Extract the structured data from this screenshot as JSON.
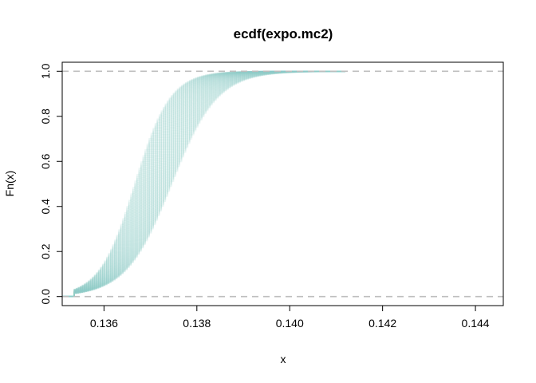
{
  "chart_data": {
    "type": "line",
    "title": "ecdf(expo.mc2)",
    "xlabel": "x",
    "ylabel": "Fn(x)",
    "xlim": [
      0.1351,
      0.1446
    ],
    "ylim": [
      -0.04,
      1.04
    ],
    "x_ticks": [
      0.136,
      0.138,
      0.14,
      0.142,
      0.144
    ],
    "x_tick_labels": [
      "0.136",
      "0.138",
      "0.140",
      "0.142",
      "0.144"
    ],
    "y_ticks": [
      0.0,
      0.2,
      0.4,
      0.6,
      0.8,
      1.0
    ],
    "y_tick_labels": [
      "0.0",
      "0.2",
      "0.4",
      "0.6",
      "0.8",
      "1.0"
    ],
    "reference_lines": [
      {
        "y": 0.0,
        "style": "dashed",
        "color": "#bebebe"
      },
      {
        "y": 1.0,
        "style": "dashed",
        "color": "#bebebe"
      }
    ],
    "series_color": "#8ecfca",
    "series_opacity": 0.18,
    "series_count": 60,
    "series": [
      {
        "x": [
          0.1353,
          0.1357,
          0.1361,
          0.1364,
          0.1367,
          0.137,
          0.1373,
          0.1377,
          0.1381,
          0.1386,
          0.1391,
          0.1397,
          0.1404,
          0.141
        ],
        "y": [
          0.0,
          0.02,
          0.1,
          0.24,
          0.42,
          0.58,
          0.7,
          0.8,
          0.88,
          0.94,
          0.97,
          0.99,
          0.997,
          1.0
        ]
      },
      {
        "x": [
          0.1355,
          0.136,
          0.1364,
          0.1368,
          0.1371,
          0.1374,
          0.1378,
          0.1382,
          0.1386,
          0.1392,
          0.1398,
          0.1405
        ],
        "y": [
          0.0,
          0.05,
          0.17,
          0.37,
          0.54,
          0.67,
          0.78,
          0.87,
          0.92,
          0.96,
          0.99,
          1.0
        ]
      },
      {
        "x": [
          0.1357,
          0.1363,
          0.1368,
          0.1372,
          0.1376,
          0.1381,
          0.1386,
          0.1392,
          0.1399,
          0.1406
        ],
        "y": [
          0.0,
          0.05,
          0.22,
          0.43,
          0.62,
          0.77,
          0.87,
          0.94,
          0.98,
          1.0
        ]
      }
    ]
  }
}
